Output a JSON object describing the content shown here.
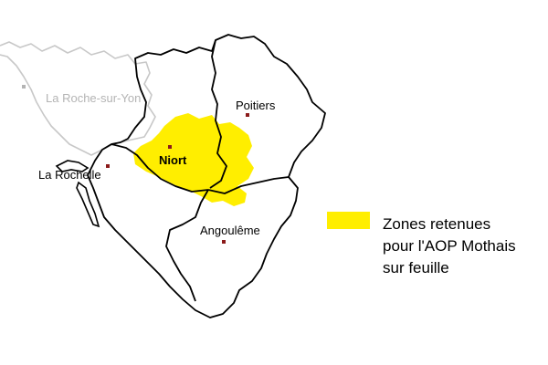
{
  "colors": {
    "zone_fill": "#ffee00",
    "region_stroke": "#000000",
    "neighbor_stroke": "#c8c8c8",
    "city_marker": "#8b1a1a",
    "muted_text": "#b4b4b4"
  },
  "cities": {
    "la_roche_sur_yon": "La Roche-sur-Yon",
    "poitiers": "Poitiers",
    "niort": "Niort",
    "la_rochelle": "La Rochelle",
    "angouleme": "Angoulême"
  },
  "legend": {
    "line1": "Zones retenues",
    "line2": "pour l'AOP Mothais",
    "line3": "sur feuille"
  }
}
